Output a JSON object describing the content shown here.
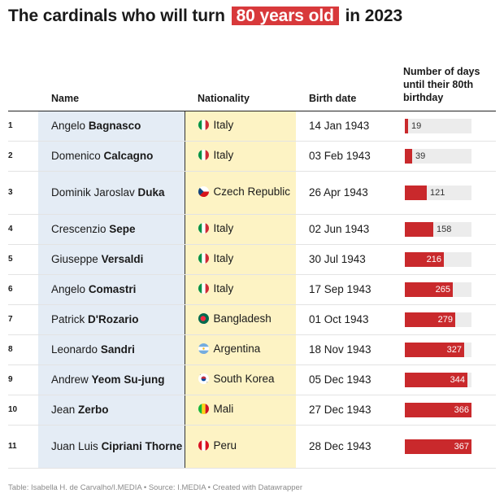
{
  "title": {
    "before": "The cardinals who will turn",
    "highlight": "80 years old",
    "after": "in 2023"
  },
  "headers": {
    "name": "Name",
    "nationality": "Nationality",
    "birth": "Birth date",
    "days": "Number of days until their 80th birthday"
  },
  "colors": {
    "highlight": "#d8393b",
    "bar": "#c9292c",
    "bar_track": "#ececec",
    "name_column_bg": "#e4ecf5",
    "nationality_column_bg": "#fdf3c4"
  },
  "bar_max": 367,
  "rows": [
    {
      "rank": "1",
      "first": "Angelo",
      "last": "Bagnasco",
      "flag": "italy-flag-icon",
      "country": "Italy",
      "birth": "14 Jan 1943",
      "days": 19
    },
    {
      "rank": "2",
      "first": "Domenico",
      "last": "Calcagno",
      "flag": "italy-flag-icon",
      "country": "Italy",
      "birth": "03 Feb 1943",
      "days": 39
    },
    {
      "rank": "3",
      "first": "Dominik Jaroslav",
      "last": "Duka",
      "flag": "czech-flag-icon",
      "country": "Czech Republic",
      "birth": "26 Apr 1943",
      "days": 121
    },
    {
      "rank": "4",
      "first": "Crescenzio",
      "last": "Sepe",
      "flag": "italy-flag-icon",
      "country": "Italy",
      "birth": "02 Jun 1943",
      "days": 158
    },
    {
      "rank": "5",
      "first": "Giuseppe",
      "last": "Versaldi",
      "flag": "italy-flag-icon",
      "country": "Italy",
      "birth": "30 Jul 1943",
      "days": 216
    },
    {
      "rank": "6",
      "first": "Angelo",
      "last": "Comastri",
      "flag": "italy-flag-icon",
      "country": "Italy",
      "birth": "17 Sep 1943",
      "days": 265
    },
    {
      "rank": "7",
      "first": "Patrick",
      "last": "D'Rozario",
      "flag": "bangladesh-flag-icon",
      "country": "Bangladesh",
      "birth": "01 Oct 1943",
      "days": 279
    },
    {
      "rank": "8",
      "first": "Leonardo",
      "last": "Sandri",
      "flag": "argentina-flag-icon",
      "country": "Argentina",
      "birth": "18 Nov 1943",
      "days": 327
    },
    {
      "rank": "9",
      "first": "Andrew",
      "last": "Yeom Su-jung",
      "flag": "south-korea-flag-icon",
      "country": "South Korea",
      "birth": "05 Dec 1943",
      "days": 344
    },
    {
      "rank": "10",
      "first": "Jean",
      "last": "Zerbo",
      "flag": "mali-flag-icon",
      "country": "Mali",
      "birth": "27 Dec 1943",
      "days": 366
    },
    {
      "rank": "11",
      "first": "Juan Luis",
      "last": "Cipriani Thorne",
      "flag": "peru-flag-icon",
      "country": "Peru",
      "birth": "28 Dec 1943",
      "days": 367
    }
  ],
  "footer": "Table: Isabella H. de Carvalho/I.MEDIA • Source: I.MEDIA • Created with Datawrapper"
}
